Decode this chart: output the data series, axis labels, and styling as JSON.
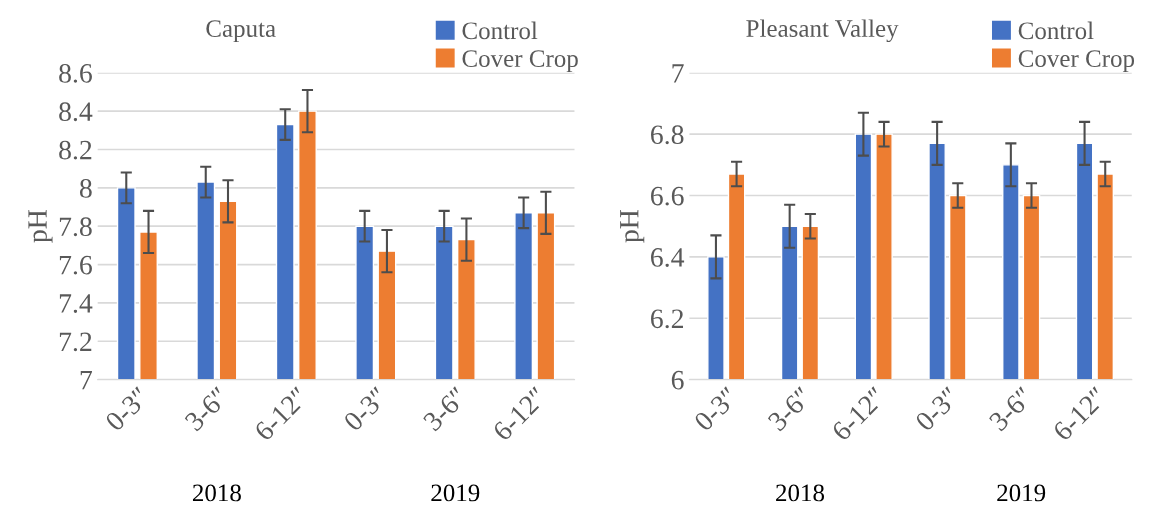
{
  "chart_data": [
    {
      "type": "bar",
      "title": "Caputa",
      "ylabel": "pH",
      "categories": [
        "0-3″",
        "3-6″",
        "6-12″",
        "0-3″",
        "3-6″",
        "6-12″"
      ],
      "series": [
        {
          "name": "Control",
          "color": "#4472c4",
          "values": [
            8.0,
            8.03,
            8.33,
            7.8,
            7.8,
            7.87
          ],
          "errors": [
            0.08,
            0.08,
            0.08,
            0.08,
            0.08,
            0.08
          ]
        },
        {
          "name": "Cover Crop",
          "color": "#ed7d31",
          "values": [
            7.77,
            7.93,
            8.4,
            7.67,
            7.73,
            7.87
          ],
          "errors": [
            0.11,
            0.11,
            0.11,
            0.11,
            0.11,
            0.11
          ]
        }
      ],
      "ylim": [
        7,
        8.6
      ],
      "yticks": [
        7,
        7.2,
        7.4,
        7.6,
        7.8,
        8,
        8.2,
        8.4,
        8.6
      ],
      "grid": "y",
      "legend": "top right",
      "annotations": [
        "2018",
        "2019"
      ]
    },
    {
      "type": "bar",
      "title": "Pleasant Valley",
      "ylabel": "pH",
      "categories": [
        "0-3″",
        "3-6″",
        "6-12″",
        "0-3″",
        "3-6″",
        "6-12″"
      ],
      "series": [
        {
          "name": "Control",
          "color": "#4472c4",
          "values": [
            6.4,
            6.5,
            6.8,
            6.77,
            6.7,
            6.77
          ],
          "errors": [
            0.07,
            0.07,
            0.07,
            0.07,
            0.07,
            0.07
          ]
        },
        {
          "name": "Cover Crop",
          "color": "#ed7d31",
          "values": [
            6.67,
            6.5,
            6.8,
            6.6,
            6.6,
            6.67
          ],
          "errors": [
            0.04,
            0.04,
            0.04,
            0.04,
            0.04,
            0.04
          ]
        }
      ],
      "ylim": [
        6,
        7
      ],
      "yticks": [
        6,
        6.2,
        6.4,
        6.6,
        6.8,
        7
      ],
      "grid": "y",
      "legend": "top right",
      "annotations": [
        "2018",
        "2019"
      ]
    }
  ]
}
